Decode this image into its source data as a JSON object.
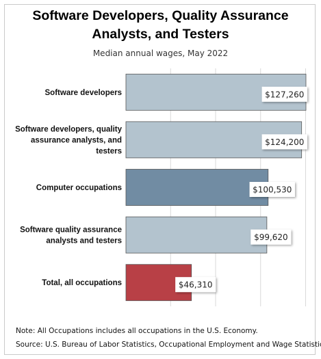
{
  "title_line1": "Software Developers, Quality Assurance",
  "title_line2": "Analysts, and Testers",
  "subtitle": "Median annual wages, May 2022",
  "note": "Note: All Occupations includes all occupations in the U.S. Economy.",
  "source": "Source: U.S. Bureau of Labor Statistics, Occupational Employment and Wage Statistics",
  "colors": {
    "light_bar": "#b3c3ce",
    "dark_bar": "#718ca3",
    "total_bar": "#b84046",
    "grid": "#d9d9d9"
  },
  "chart_data": {
    "type": "bar",
    "orientation": "horizontal",
    "title": "Software Developers, Quality Assurance Analysts, and Testers",
    "subtitle": "Median annual wages, May 2022",
    "categories": [
      [
        "Software developers"
      ],
      [
        "Software developers, quality",
        "assurance analysts, and",
        "testers"
      ],
      [
        "Computer occupations"
      ],
      [
        "Software quality assurance",
        "analysts and testers"
      ],
      [
        "Total, all occupations"
      ]
    ],
    "values": [
      127260,
      124200,
      100530,
      99620,
      46310
    ],
    "value_labels": [
      "$127,260",
      "$124,200",
      "$100,530",
      "$99,620",
      "$46,310"
    ],
    "bar_colors": [
      "#b3c3ce",
      "#b3c3ce",
      "#718ca3",
      "#b3c3ce",
      "#b84046"
    ],
    "xlim": [
      0,
      127260
    ],
    "grid": true,
    "legend": "none"
  }
}
